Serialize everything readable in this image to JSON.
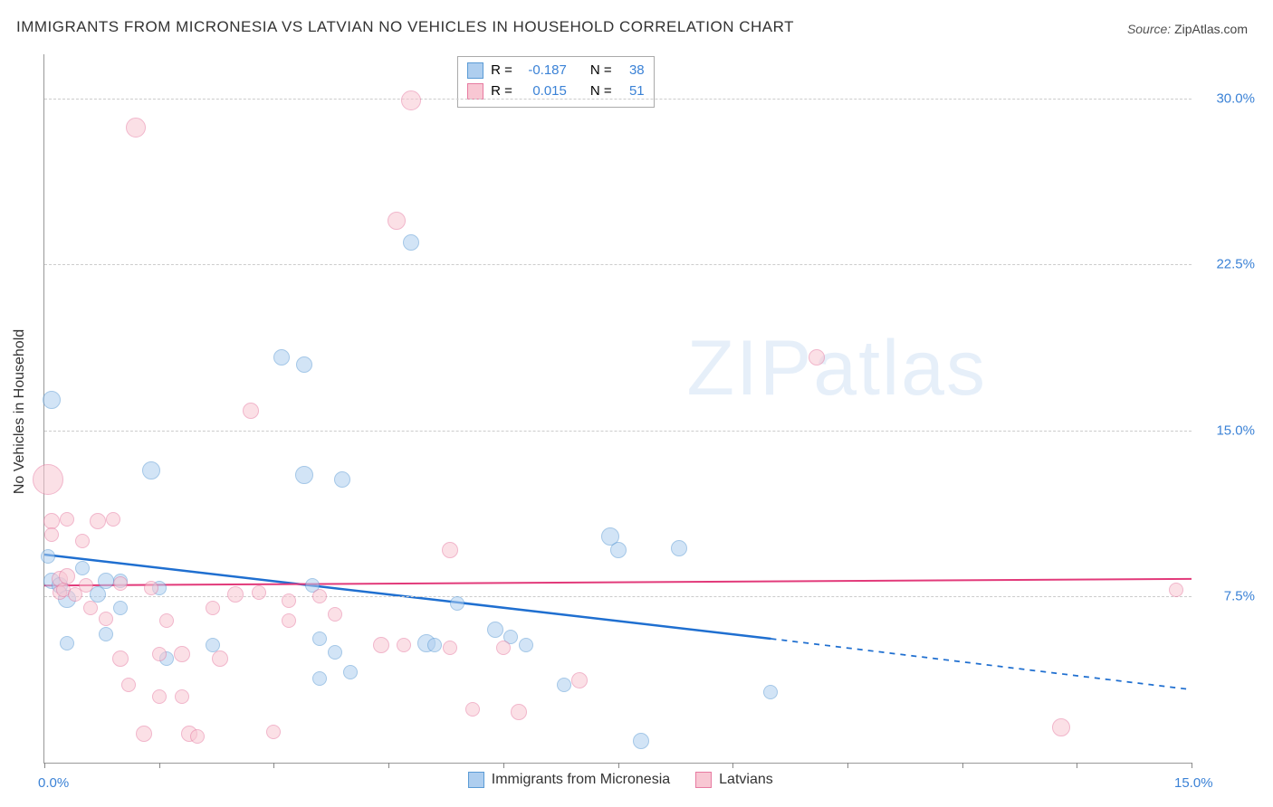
{
  "title": "IMMIGRANTS FROM MICRONESIA VS LATVIAN NO VEHICLES IN HOUSEHOLD CORRELATION CHART",
  "source_prefix": "Source: ",
  "source_name": "ZipAtlas.com",
  "ylabel": "No Vehicles in Household",
  "watermark": "ZIPatlas",
  "chart": {
    "type": "scatter",
    "background_color": "#ffffff",
    "grid_color": "#cccccc",
    "axis_color": "#999999",
    "tick_label_color": "#3b82d6",
    "tick_fontsize": 15,
    "xlim": [
      0,
      15
    ],
    "ylim": [
      0,
      32
    ],
    "xtick_positions": [
      0,
      1.5,
      3.0,
      4.5,
      6.0,
      7.5,
      9.0,
      10.5,
      12.0,
      13.5,
      15.0
    ],
    "xtick_labels_shown": {
      "0": "0.0%",
      "15": "15.0%"
    },
    "ytick_positions": [
      7.5,
      15.0,
      22.5,
      30.0
    ],
    "ytick_labels": [
      "7.5%",
      "15.0%",
      "22.5%",
      "30.0%"
    ]
  },
  "series": [
    {
      "id": "micronesia",
      "label": "Immigrants from Micronesia",
      "fill_color": "#aeceef",
      "fill_opacity": 0.55,
      "stroke_color": "#5b9bd5",
      "R": "-0.187",
      "N": "38",
      "trend": {
        "x1": 0,
        "y1": 9.4,
        "x2": 9.5,
        "y2": 5.6,
        "dash_to_x": 15,
        "dash_to_y": 3.3,
        "color": "#1f6fd0",
        "width": 2.5
      },
      "points": [
        {
          "x": 0.09,
          "y": 16.4,
          "r": 10
        },
        {
          "x": 0.05,
          "y": 9.3,
          "r": 8
        },
        {
          "x": 0.1,
          "y": 8.2,
          "r": 9
        },
        {
          "x": 0.2,
          "y": 8.0,
          "r": 9
        },
        {
          "x": 0.3,
          "y": 7.4,
          "r": 10
        },
        {
          "x": 0.3,
          "y": 5.4,
          "r": 8
        },
        {
          "x": 0.5,
          "y": 8.8,
          "r": 8
        },
        {
          "x": 0.7,
          "y": 7.6,
          "r": 9
        },
        {
          "x": 0.8,
          "y": 8.2,
          "r": 9
        },
        {
          "x": 0.8,
          "y": 5.8,
          "r": 8
        },
        {
          "x": 1.0,
          "y": 8.2,
          "r": 8
        },
        {
          "x": 1.0,
          "y": 7.0,
          "r": 8
        },
        {
          "x": 1.4,
          "y": 13.2,
          "r": 10
        },
        {
          "x": 1.5,
          "y": 7.9,
          "r": 8
        },
        {
          "x": 1.6,
          "y": 4.7,
          "r": 8
        },
        {
          "x": 2.2,
          "y": 5.3,
          "r": 8
        },
        {
          "x": 3.1,
          "y": 18.3,
          "r": 9
        },
        {
          "x": 3.4,
          "y": 18.0,
          "r": 9
        },
        {
          "x": 3.4,
          "y": 13.0,
          "r": 10
        },
        {
          "x": 3.5,
          "y": 8.0,
          "r": 8
        },
        {
          "x": 3.6,
          "y": 5.6,
          "r": 8
        },
        {
          "x": 3.6,
          "y": 3.8,
          "r": 8
        },
        {
          "x": 3.8,
          "y": 5.0,
          "r": 8
        },
        {
          "x": 3.9,
          "y": 12.8,
          "r": 9
        },
        {
          "x": 4.0,
          "y": 4.1,
          "r": 8
        },
        {
          "x": 4.8,
          "y": 23.5,
          "r": 9
        },
        {
          "x": 5.0,
          "y": 5.4,
          "r": 10
        },
        {
          "x": 5.1,
          "y": 5.3,
          "r": 8
        },
        {
          "x": 5.4,
          "y": 7.2,
          "r": 8
        },
        {
          "x": 5.9,
          "y": 6.0,
          "r": 9
        },
        {
          "x": 6.1,
          "y": 5.7,
          "r": 8
        },
        {
          "x": 6.3,
          "y": 5.3,
          "r": 8
        },
        {
          "x": 6.8,
          "y": 3.5,
          "r": 8
        },
        {
          "x": 7.4,
          "y": 10.2,
          "r": 10
        },
        {
          "x": 7.5,
          "y": 9.6,
          "r": 9
        },
        {
          "x": 7.8,
          "y": 1.0,
          "r": 9
        },
        {
          "x": 8.3,
          "y": 9.7,
          "r": 9
        },
        {
          "x": 9.5,
          "y": 3.2,
          "r": 8
        }
      ]
    },
    {
      "id": "latvians",
      "label": "Latvians",
      "fill_color": "#f8c7d3",
      "fill_opacity": 0.55,
      "stroke_color": "#e77ba1",
      "R": "0.015",
      "N": "51",
      "trend": {
        "x1": 0,
        "y1": 8.0,
        "x2": 15,
        "y2": 8.3,
        "color": "#e23a7a",
        "width": 2
      },
      "points": [
        {
          "x": 0.05,
          "y": 12.8,
          "r": 17
        },
        {
          "x": 0.1,
          "y": 10.9,
          "r": 9
        },
        {
          "x": 0.1,
          "y": 10.3,
          "r": 8
        },
        {
          "x": 0.2,
          "y": 8.3,
          "r": 9
        },
        {
          "x": 0.2,
          "y": 7.7,
          "r": 8
        },
        {
          "x": 0.25,
          "y": 7.8,
          "r": 8
        },
        {
          "x": 0.3,
          "y": 8.4,
          "r": 9
        },
        {
          "x": 0.3,
          "y": 11.0,
          "r": 8
        },
        {
          "x": 0.4,
          "y": 7.6,
          "r": 8
        },
        {
          "x": 0.5,
          "y": 10.0,
          "r": 8
        },
        {
          "x": 0.55,
          "y": 8.0,
          "r": 8
        },
        {
          "x": 0.6,
          "y": 7.0,
          "r": 8
        },
        {
          "x": 0.7,
          "y": 10.9,
          "r": 9
        },
        {
          "x": 0.8,
          "y": 6.5,
          "r": 8
        },
        {
          "x": 0.9,
          "y": 11.0,
          "r": 8
        },
        {
          "x": 1.0,
          "y": 4.7,
          "r": 9
        },
        {
          "x": 1.0,
          "y": 8.1,
          "r": 8
        },
        {
          "x": 1.1,
          "y": 3.5,
          "r": 8
        },
        {
          "x": 1.2,
          "y": 28.7,
          "r": 11
        },
        {
          "x": 1.3,
          "y": 1.3,
          "r": 9
        },
        {
          "x": 1.4,
          "y": 7.9,
          "r": 8
        },
        {
          "x": 1.5,
          "y": 3.0,
          "r": 8
        },
        {
          "x": 1.5,
          "y": 4.9,
          "r": 8
        },
        {
          "x": 1.6,
          "y": 6.4,
          "r": 8
        },
        {
          "x": 1.8,
          "y": 3.0,
          "r": 8
        },
        {
          "x": 1.8,
          "y": 4.9,
          "r": 9
        },
        {
          "x": 1.9,
          "y": 1.3,
          "r": 9
        },
        {
          "x": 2.0,
          "y": 1.2,
          "r": 8
        },
        {
          "x": 2.2,
          "y": 7.0,
          "r": 8
        },
        {
          "x": 2.3,
          "y": 4.7,
          "r": 9
        },
        {
          "x": 2.5,
          "y": 7.6,
          "r": 9
        },
        {
          "x": 2.7,
          "y": 15.9,
          "r": 9
        },
        {
          "x": 2.8,
          "y": 7.7,
          "r": 8
        },
        {
          "x": 3.0,
          "y": 1.4,
          "r": 8
        },
        {
          "x": 3.2,
          "y": 6.4,
          "r": 8
        },
        {
          "x": 3.2,
          "y": 7.3,
          "r": 8
        },
        {
          "x": 3.6,
          "y": 7.5,
          "r": 8
        },
        {
          "x": 3.8,
          "y": 6.7,
          "r": 8
        },
        {
          "x": 4.4,
          "y": 5.3,
          "r": 9
        },
        {
          "x": 4.6,
          "y": 24.5,
          "r": 10
        },
        {
          "x": 4.7,
          "y": 5.3,
          "r": 8
        },
        {
          "x": 4.8,
          "y": 29.9,
          "r": 11
        },
        {
          "x": 5.3,
          "y": 9.6,
          "r": 9
        },
        {
          "x": 5.3,
          "y": 5.2,
          "r": 8
        },
        {
          "x": 5.6,
          "y": 2.4,
          "r": 8
        },
        {
          "x": 6.0,
          "y": 5.2,
          "r": 8
        },
        {
          "x": 6.2,
          "y": 2.3,
          "r": 9
        },
        {
          "x": 7.0,
          "y": 3.7,
          "r": 9
        },
        {
          "x": 10.1,
          "y": 18.3,
          "r": 9
        },
        {
          "x": 13.3,
          "y": 1.6,
          "r": 10
        },
        {
          "x": 14.8,
          "y": 7.8,
          "r": 8
        }
      ]
    }
  ],
  "legend": {
    "stats_prefix_R": "R =",
    "stats_prefix_N": "N ="
  }
}
